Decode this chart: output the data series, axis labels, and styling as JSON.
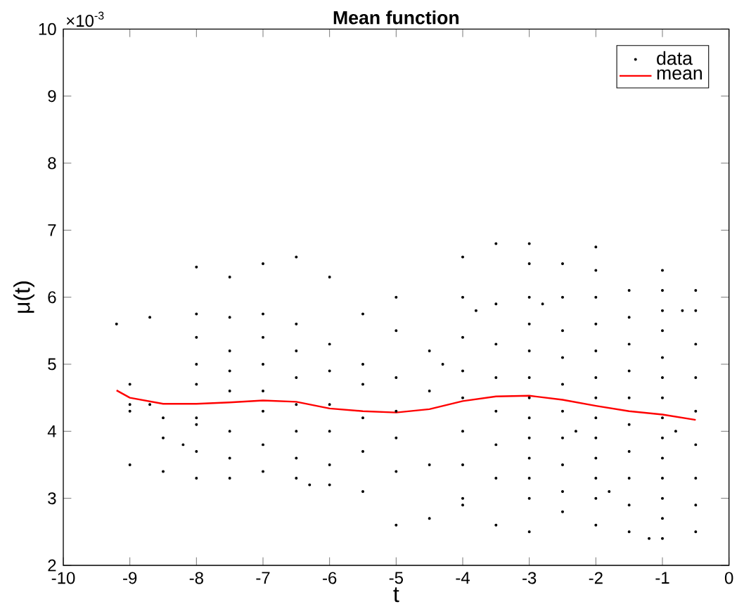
{
  "chart_data": {
    "type": "scatter",
    "title": "Mean function",
    "xlabel": "t",
    "ylabel": "μ(t)",
    "annotations": [
      "×10$^{-3}$"
    ],
    "xlim": [
      -10,
      0
    ],
    "ylim": [
      2,
      10
    ],
    "xticks": [
      -10,
      -9,
      -8,
      -7,
      -6,
      -5,
      -4,
      -3,
      -2,
      -1,
      0
    ],
    "yticks": [
      2,
      3,
      4,
      5,
      6,
      7,
      8,
      9,
      10
    ],
    "grid": false,
    "legend": "top right",
    "series": [
      {
        "name": "data",
        "type": "scatter",
        "marker": "circle",
        "color": "#000000",
        "x": [
          -9.2,
          -9,
          -9,
          -9,
          -9,
          -8.7,
          -8.7,
          -8.5,
          -8.5,
          -8.5,
          -8.2,
          -8,
          -8,
          -8,
          -8,
          -8,
          -8,
          -8,
          -8,
          -8,
          -7.5,
          -7.5,
          -7.5,
          -7.5,
          -7.5,
          -7.5,
          -7.5,
          -7.5,
          -7,
          -7,
          -7,
          -7,
          -7,
          -7,
          -7,
          -7,
          -6.5,
          -6.5,
          -6.5,
          -6.5,
          -6.5,
          -6.5,
          -6.5,
          -6.5,
          -6.3,
          -6,
          -6,
          -6,
          -6,
          -6,
          -6,
          -6,
          -5.5,
          -5.5,
          -5.5,
          -5.5,
          -5.5,
          -5.5,
          -5,
          -5,
          -5,
          -5,
          -5,
          -5,
          -5,
          -4.5,
          -4.5,
          -4.5,
          -4.5,
          -4,
          -4,
          -4,
          -4,
          -4,
          -4,
          -4,
          -4,
          -4,
          -3.5,
          -3.5,
          -3.5,
          -3.5,
          -3.5,
          -3.5,
          -3.5,
          -3.5,
          -3,
          -3,
          -3,
          -3,
          -3,
          -3,
          -3,
          -3,
          -3,
          -3,
          -3,
          -3,
          -3,
          -2.5,
          -2.5,
          -2.5,
          -2.5,
          -2.5,
          -2.5,
          -2.5,
          -2.5,
          -2.5,
          -2.5,
          -2,
          -2,
          -2,
          -2,
          -2,
          -2,
          -2,
          -2,
          -2,
          -2,
          -2,
          -2,
          -2,
          -1.5,
          -1.5,
          -1.5,
          -1.5,
          -1.5,
          -1.5,
          -1.5,
          -1.5,
          -1.5,
          -1.5,
          -1,
          -1,
          -1,
          -1,
          -1,
          -1,
          -1,
          -1,
          -1,
          -1,
          -1,
          -1,
          -1,
          -1,
          -0.5,
          -0.5,
          -0.5,
          -0.5,
          -0.5,
          -0.5,
          -0.5,
          -0.5,
          -0.5,
          -3.8,
          -2.8,
          -1.8,
          -1.2,
          -0.7,
          -4.3,
          -2.3,
          -0.8
        ],
        "values": [
          5.6,
          4.7,
          4.3,
          3.5,
          4.4,
          4.4,
          5.7,
          4.2,
          3.4,
          3.9,
          3.8,
          6.45,
          5.75,
          5.0,
          4.7,
          4.2,
          3.7,
          3.3,
          5.4,
          4.1,
          6.3,
          5.7,
          5.2,
          4.9,
          4.6,
          4.0,
          3.6,
          3.3,
          6.5,
          5.75,
          5.4,
          5.0,
          4.6,
          4.3,
          3.8,
          3.4,
          6.6,
          5.6,
          5.2,
          4.8,
          4.4,
          4.0,
          3.6,
          3.3,
          3.2,
          6.3,
          5.3,
          4.9,
          4.4,
          4.0,
          3.5,
          3.2,
          5.75,
          5.0,
          4.7,
          4.2,
          3.7,
          3.1,
          6.0,
          5.5,
          4.8,
          4.3,
          3.9,
          3.4,
          2.6,
          5.2,
          4.6,
          3.5,
          2.7,
          6.6,
          6.0,
          5.4,
          4.9,
          4.5,
          4.0,
          3.5,
          3.0,
          2.9,
          6.8,
          5.9,
          5.3,
          4.8,
          4.3,
          3.8,
          3.3,
          2.6,
          6.8,
          6.5,
          6.0,
          5.6,
          5.2,
          4.8,
          4.5,
          4.2,
          3.9,
          3.6,
          3.3,
          3.0,
          2.5,
          6.5,
          6.0,
          5.5,
          5.1,
          4.7,
          4.3,
          3.9,
          3.5,
          3.1,
          2.8,
          6.75,
          6.4,
          6.0,
          5.6,
          5.2,
          4.8,
          4.5,
          4.2,
          3.9,
          3.6,
          3.3,
          3.0,
          2.6,
          6.1,
          5.7,
          5.3,
          4.9,
          4.5,
          4.1,
          3.7,
          3.3,
          2.9,
          2.5,
          6.4,
          6.1,
          5.8,
          5.5,
          5.1,
          4.8,
          4.5,
          4.2,
          3.9,
          3.6,
          3.3,
          3.0,
          2.7,
          2.4,
          6.1,
          5.8,
          5.3,
          4.8,
          4.3,
          3.8,
          3.3,
          2.9,
          2.5,
          5.8,
          5.9,
          3.1,
          2.4,
          5.8,
          5.0,
          4.0,
          4.0
        ]
      },
      {
        "name": "mean",
        "type": "line",
        "marker": "none",
        "line_style": "solid",
        "color": "#ff0000",
        "x": [
          -9.2,
          -9,
          -8.5,
          -8,
          -7.5,
          -7,
          -6.5,
          -6,
          -5.5,
          -5,
          -4.5,
          -4,
          -3.5,
          -3,
          -2.5,
          -2,
          -1.5,
          -1,
          -0.5
        ],
        "values": [
          4.61,
          4.5,
          4.41,
          4.41,
          4.43,
          4.46,
          4.44,
          4.34,
          4.3,
          4.28,
          4.33,
          4.45,
          4.52,
          4.53,
          4.47,
          4.38,
          4.3,
          4.25,
          4.17
        ]
      }
    ]
  }
}
